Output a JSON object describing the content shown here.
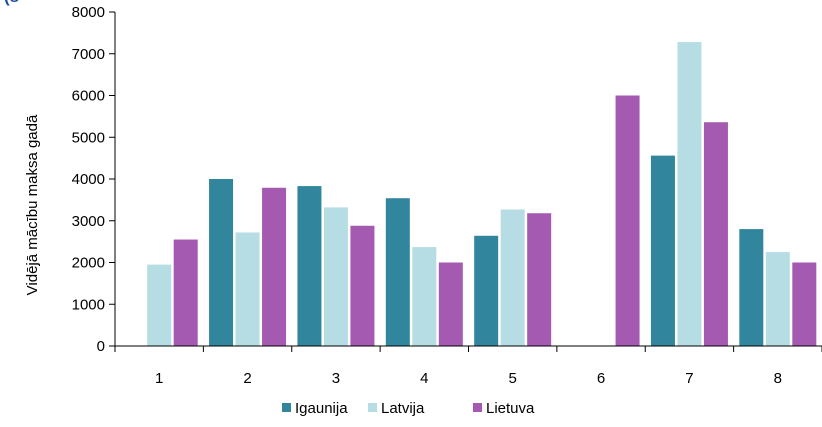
{
  "chart_data": {
    "type": "bar",
    "title": "(s",
    "ylabel": "Vidējā mācību maksa gadā",
    "xlabel": "",
    "categories": [
      "1",
      "2",
      "3",
      "4",
      "5",
      "6",
      "7",
      "8"
    ],
    "ylim": [
      0,
      8000
    ],
    "yticks": [
      0,
      1000,
      2000,
      3000,
      4000,
      5000,
      6000,
      7000,
      8000
    ],
    "grid": false,
    "legend_position": "bottom",
    "series": [
      {
        "name": "Igaunija",
        "color": "#31859c",
        "values": [
          null,
          4000,
          3830,
          3540,
          2640,
          null,
          4560,
          2800
        ]
      },
      {
        "name": "Latvija",
        "color": "#b7dde4",
        "values": [
          1950,
          2720,
          3320,
          2370,
          3270,
          null,
          7280,
          2250
        ]
      },
      {
        "name": "Lietuva",
        "color": "#a35ab0",
        "values": [
          2550,
          3790,
          2880,
          2000,
          3180,
          6000,
          5360,
          2000
        ]
      }
    ]
  }
}
